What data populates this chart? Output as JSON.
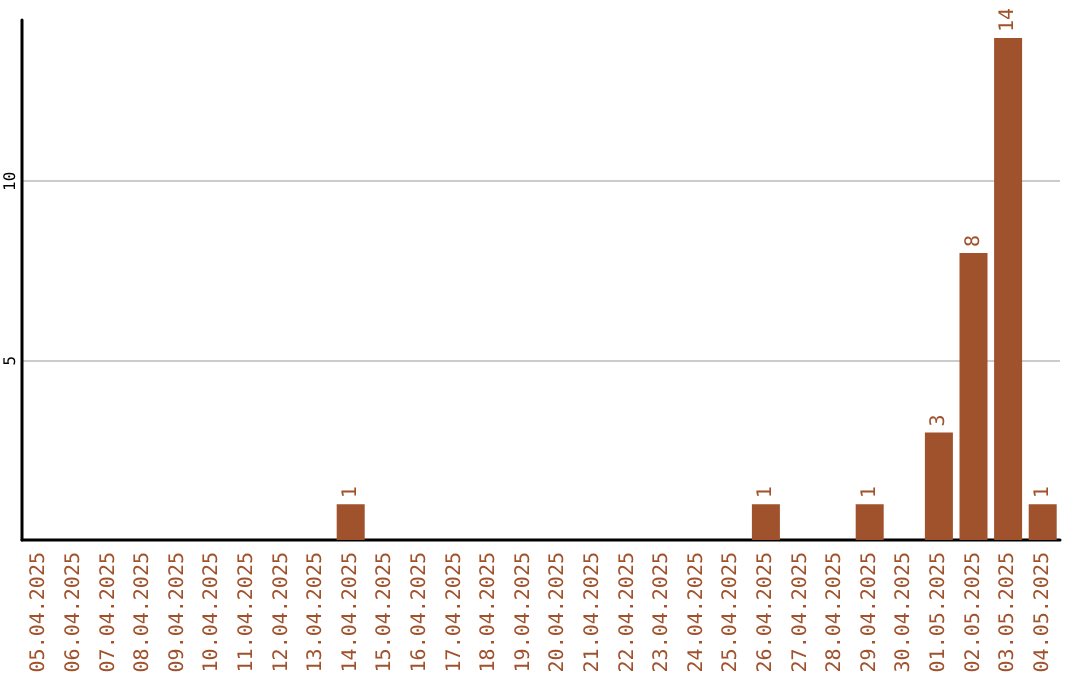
{
  "chart_data": {
    "type": "bar",
    "categories": [
      "05.04.2025",
      "06.04.2025",
      "07.04.2025",
      "08.04.2025",
      "09.04.2025",
      "10.04.2025",
      "11.04.2025",
      "12.04.2025",
      "13.04.2025",
      "14.04.2025",
      "15.04.2025",
      "16.04.2025",
      "17.04.2025",
      "18.04.2025",
      "19.04.2025",
      "20.04.2025",
      "21.04.2025",
      "22.04.2025",
      "23.04.2025",
      "24.04.2025",
      "25.04.2025",
      "26.04.2025",
      "27.04.2025",
      "28.04.2025",
      "29.04.2025",
      "30.04.2025",
      "01.05.2025",
      "02.05.2025",
      "03.05.2025",
      "04.05.2025"
    ],
    "values": [
      0,
      0,
      0,
      0,
      0,
      0,
      0,
      0,
      0,
      1,
      0,
      0,
      0,
      0,
      0,
      0,
      0,
      0,
      0,
      0,
      0,
      1,
      0,
      0,
      1,
      0,
      3,
      8,
      14,
      1
    ],
    "value_labels": [
      null,
      null,
      null,
      null,
      null,
      null,
      null,
      null,
      null,
      "1",
      null,
      null,
      null,
      null,
      null,
      null,
      null,
      null,
      null,
      null,
      null,
      "1",
      null,
      null,
      "1",
      null,
      "3",
      "8",
      "14",
      "1"
    ],
    "color": "#a0522d",
    "ylim": [
      0,
      14.5
    ],
    "yticks": [
      5,
      10
    ],
    "grid": "y"
  }
}
